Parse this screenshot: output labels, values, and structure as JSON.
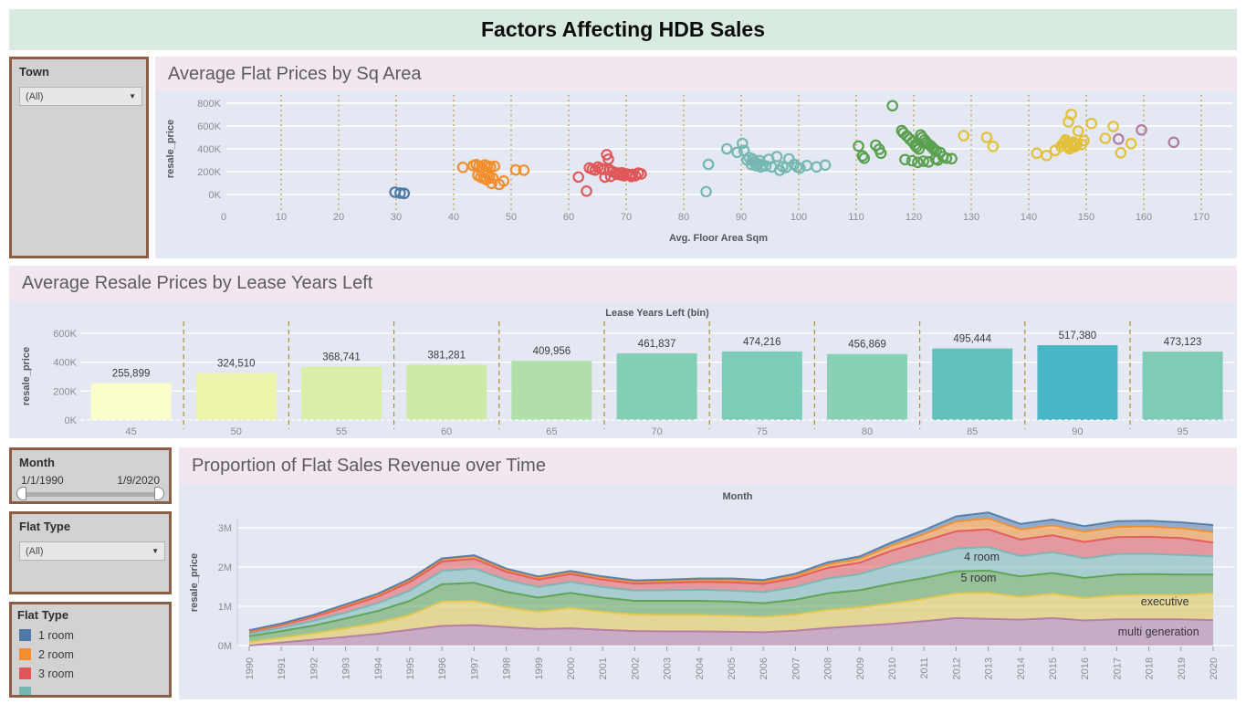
{
  "header": {
    "title": "Factors Affecting HDB Sales"
  },
  "icons": {
    "dropdown_caret": "▼"
  },
  "filters": {
    "town": {
      "label": "Town",
      "value": "(All)"
    },
    "month": {
      "label": "Month",
      "start": "1/1/1990",
      "end": "1/9/2020"
    },
    "flat_type": {
      "label": "Flat Type",
      "value": "(All)"
    }
  },
  "legend": {
    "title": "Flat Type",
    "items": [
      {
        "label": "1 room",
        "color": "#4e79a7"
      },
      {
        "label": "2 room",
        "color": "#f28e2b"
      },
      {
        "label": "3 room",
        "color": "#e15759"
      },
      {
        "label": "",
        "color": "#76b7b2"
      }
    ]
  },
  "colors": {
    "banner_bg": "#d9eae1",
    "strip_bg": "#f2e7f0",
    "plot_bg": "#e4e8f3",
    "filter_border": "#8b5e46",
    "grid_white": "#ffffff"
  },
  "chart_data": [
    {
      "id": "scatter",
      "type": "scatter",
      "title": "Average Flat Prices by Sq Area",
      "xlabel": "Avg. Floor Area Sqm",
      "ylabel": "resale_price",
      "xlim": [
        0,
        175
      ],
      "ylim_k": [
        0,
        800
      ],
      "grid_color": "#b99a2f",
      "x_ticks": [
        0,
        10,
        20,
        30,
        40,
        50,
        60,
        70,
        80,
        90,
        100,
        110,
        120,
        130,
        140,
        150,
        160,
        170
      ],
      "y_ticks": [
        [
          0,
          "0K"
        ],
        [
          200,
          "200K"
        ],
        [
          400,
          "400K"
        ],
        [
          600,
          "600K"
        ],
        [
          800,
          "800K"
        ]
      ],
      "series": [
        {
          "name": "1 room",
          "color": "#4e79a7",
          "points": [
            [
              29.8,
              20
            ],
            [
              30.7,
              13
            ],
            [
              31.4,
              10
            ]
          ]
        },
        {
          "name": "2 room",
          "color": "#f28e2b",
          "points": [
            [
              41.6,
              238
            ],
            [
              43.4,
              252
            ],
            [
              43.9,
              262
            ],
            [
              44.4,
              248
            ],
            [
              44.9,
              238
            ],
            [
              45.4,
              260
            ],
            [
              45.9,
              250
            ],
            [
              46.4,
              242
            ],
            [
              47.1,
              248
            ],
            [
              44.2,
              168
            ],
            [
              44.7,
              152
            ],
            [
              45.2,
              142
            ],
            [
              45.7,
              130
            ],
            [
              46.2,
              152
            ],
            [
              46.8,
              144
            ],
            [
              46.6,
              98
            ],
            [
              47.9,
              88
            ],
            [
              48.7,
              118
            ],
            [
              45.0,
              198
            ],
            [
              46.0,
              186
            ],
            [
              50.8,
              215
            ],
            [
              52.2,
              213
            ]
          ]
        },
        {
          "name": "3 room",
          "color": "#e15759",
          "points": [
            [
              61.7,
              153
            ],
            [
              63.1,
              30
            ],
            [
              63.6,
              233
            ],
            [
              64.1,
              222
            ],
            [
              64.6,
              214
            ],
            [
              65.1,
              241
            ],
            [
              65.6,
              229
            ],
            [
              66.1,
              219
            ],
            [
              66.6,
              349
            ],
            [
              66.9,
              309
            ],
            [
              67.1,
              215
            ],
            [
              67.6,
              201
            ],
            [
              68.1,
              191
            ],
            [
              68.4,
              177
            ],
            [
              68.8,
              187
            ],
            [
              69.1,
              171
            ],
            [
              69.6,
              165
            ],
            [
              70.1,
              179
            ],
            [
              70.6,
              171
            ],
            [
              71.1,
              175
            ],
            [
              71.6,
              165
            ],
            [
              72.1,
              187
            ],
            [
              72.6,
              179
            ],
            [
              66.3,
              153
            ],
            [
              67.3,
              159
            ],
            [
              70.9,
              158
            ],
            [
              69.3,
              190
            ]
          ]
        },
        {
          "name": "4 room",
          "color": "#76b7b2",
          "points": [
            [
              83.9,
              25
            ],
            [
              84.3,
              264
            ],
            [
              87.5,
              400
            ],
            [
              89.3,
              370
            ],
            [
              90.2,
              448
            ],
            [
              90.5,
              386
            ],
            [
              91.0,
              302
            ],
            [
              91.4,
              324
            ],
            [
              91.8,
              262
            ],
            [
              92.2,
              284
            ],
            [
              92.6,
              252
            ],
            [
              93.0,
              270
            ],
            [
              93.4,
              242
            ],
            [
              93.8,
              258
            ],
            [
              94.3,
              250
            ],
            [
              94.8,
              308
            ],
            [
              95.3,
              242
            ],
            [
              96.2,
              332
            ],
            [
              96.7,
              212
            ],
            [
              97.2,
              244
            ],
            [
              97.8,
              238
            ],
            [
              98.3,
              312
            ],
            [
              99.2,
              264
            ],
            [
              99.7,
              242
            ],
            [
              100.2,
              232
            ],
            [
              101.4,
              254
            ],
            [
              103.1,
              242
            ],
            [
              104.6,
              258
            ],
            [
              92.0,
              310
            ],
            [
              93.2,
              296
            ]
          ]
        },
        {
          "name": "5 room",
          "color": "#59a14f",
          "points": [
            [
              110.4,
              424
            ],
            [
              111.1,
              338
            ],
            [
              111.4,
              318
            ],
            [
              113.4,
              432
            ],
            [
              114.0,
              396
            ],
            [
              114.3,
              362
            ],
            [
              116.3,
              778
            ],
            [
              117.9,
              560
            ],
            [
              118.2,
              540
            ],
            [
              118.8,
              512
            ],
            [
              119.3,
              484
            ],
            [
              119.8,
              462
            ],
            [
              120.2,
              434
            ],
            [
              120.5,
              416
            ],
            [
              120.9,
              398
            ],
            [
              121.2,
              522
            ],
            [
              121.5,
              500
            ],
            [
              121.9,
              478
            ],
            [
              122.2,
              458
            ],
            [
              122.5,
              442
            ],
            [
              122.9,
              428
            ],
            [
              123.2,
              412
            ],
            [
              123.5,
              396
            ],
            [
              123.9,
              382
            ],
            [
              124.2,
              302
            ],
            [
              121.7,
              292
            ],
            [
              120.7,
              282
            ],
            [
              122.6,
              286
            ],
            [
              123.8,
              312
            ],
            [
              125.1,
              332
            ],
            [
              125.7,
              318
            ],
            [
              119.7,
              296
            ],
            [
              126.6,
              314
            ],
            [
              118.5,
              306
            ],
            [
              124.6,
              368
            ]
          ]
        },
        {
          "name": "executive",
          "color": "#e3c03a",
          "points": [
            [
              128.7,
              515
            ],
            [
              132.7,
              500
            ],
            [
              133.8,
              422
            ],
            [
              141.4,
              362
            ],
            [
              143.1,
              342
            ],
            [
              144.6,
              386
            ],
            [
              145.6,
              422
            ],
            [
              146.0,
              446
            ],
            [
              146.3,
              462
            ],
            [
              146.6,
              432
            ],
            [
              146.9,
              416
            ],
            [
              147.1,
              400
            ],
            [
              147.3,
              446
            ],
            [
              147.6,
              430
            ],
            [
              148.0,
              420
            ],
            [
              148.4,
              442
            ],
            [
              147.4,
              702
            ],
            [
              146.9,
              636
            ],
            [
              148.6,
              556
            ],
            [
              150.9,
              622
            ],
            [
              149.6,
              472
            ],
            [
              153.3,
              492
            ],
            [
              154.7,
              596
            ],
            [
              156.0,
              366
            ],
            [
              157.8,
              446
            ],
            [
              147.8,
              458
            ],
            [
              146.4,
              478
            ],
            [
              149.2,
              438
            ]
          ]
        },
        {
          "name": "multi generation",
          "color": "#b07aa1",
          "points": [
            [
              155.6,
              486
            ],
            [
              159.6,
              566
            ],
            [
              165.2,
              458
            ]
          ]
        }
      ]
    },
    {
      "id": "lease_bars",
      "type": "bar",
      "title": "Average Resale Prices by Lease Years Left",
      "axis_header": "Lease Years Left (bin)",
      "ylabel": "resale_price",
      "grid_color": "#ad8d2d",
      "categories": [
        45,
        50,
        55,
        60,
        65,
        70,
        75,
        80,
        85,
        90,
        95
      ],
      "values": [
        255899,
        324510,
        368741,
        381281,
        409956,
        461837,
        474216,
        456869,
        495444,
        517380,
        473123
      ],
      "labels": [
        "255,899",
        "324,510",
        "368,741",
        "381,281",
        "409,956",
        "461,837",
        "474,216",
        "456,869",
        "495,444",
        "517,380",
        "473,123"
      ],
      "bar_colors": [
        "#fbfccb",
        "#ecf5ab",
        "#d9efa8",
        "#cdeba7",
        "#b0dfaa",
        "#84cfb5",
        "#7cccb8",
        "#89d0b2",
        "#61c2bd",
        "#47b7c5",
        "#7ecbb6"
      ],
      "y_ticks": [
        [
          0,
          "0K"
        ],
        [
          200000,
          "200K"
        ],
        [
          400000,
          "400K"
        ],
        [
          600000,
          "600K"
        ]
      ],
      "ylim": [
        0,
        600000
      ]
    },
    {
      "id": "revenue_area",
      "type": "area",
      "title": "Proportion of Flat Sales Revenue over Time",
      "axis_header": "Month",
      "ylabel": "resale_price",
      "x": [
        1990,
        1991,
        1992,
        1993,
        1994,
        1995,
        1996,
        1997,
        1998,
        1999,
        2000,
        2001,
        2002,
        2003,
        2004,
        2005,
        2006,
        2007,
        2008,
        2009,
        2010,
        2011,
        2012,
        2013,
        2014,
        2015,
        2016,
        2017,
        2018,
        2019,
        2020
      ],
      "y_ticks": [
        [
          0,
          "0M"
        ],
        [
          1,
          "1M"
        ],
        [
          2,
          "2M"
        ],
        [
          3,
          "3M"
        ]
      ],
      "ylim_m": [
        0,
        3.6
      ],
      "series_bottom_to_top": [
        {
          "name": "multi generation",
          "color": "#b07aa1",
          "values": [
            0.0,
            0.08,
            0.15,
            0.22,
            0.3,
            0.4,
            0.5,
            0.52,
            0.47,
            0.42,
            0.44,
            0.4,
            0.37,
            0.36,
            0.36,
            0.35,
            0.34,
            0.38,
            0.45,
            0.5,
            0.55,
            0.62,
            0.7,
            0.68,
            0.66,
            0.7,
            0.64,
            0.67,
            0.67,
            0.67,
            0.65
          ]
        },
        {
          "name": "executive",
          "color": "#e3c64a",
          "values": [
            0.09,
            0.12,
            0.16,
            0.22,
            0.28,
            0.38,
            0.62,
            0.62,
            0.5,
            0.44,
            0.52,
            0.46,
            0.42,
            0.42,
            0.42,
            0.41,
            0.39,
            0.41,
            0.46,
            0.47,
            0.53,
            0.57,
            0.63,
            0.66,
            0.58,
            0.62,
            0.57,
            0.61,
            0.62,
            0.62,
            0.68
          ]
        },
        {
          "name": "5 room",
          "color": "#59a14f",
          "values": [
            0.15,
            0.17,
            0.2,
            0.25,
            0.3,
            0.36,
            0.44,
            0.46,
            0.4,
            0.36,
            0.38,
            0.36,
            0.35,
            0.36,
            0.36,
            0.36,
            0.35,
            0.38,
            0.42,
            0.44,
            0.5,
            0.53,
            0.56,
            0.57,
            0.52,
            0.53,
            0.51,
            0.53,
            0.53,
            0.52,
            0.48
          ]
        },
        {
          "name": "4 room",
          "color": "#76b7b2",
          "values": [
            0.06,
            0.08,
            0.12,
            0.15,
            0.2,
            0.26,
            0.34,
            0.36,
            0.3,
            0.27,
            0.28,
            0.27,
            0.26,
            0.27,
            0.28,
            0.28,
            0.28,
            0.32,
            0.38,
            0.41,
            0.48,
            0.54,
            0.58,
            0.6,
            0.52,
            0.53,
            0.5,
            0.52,
            0.52,
            0.5,
            0.46
          ]
        },
        {
          "name": "3 room",
          "color": "#e15759",
          "values": [
            0.05,
            0.07,
            0.1,
            0.14,
            0.17,
            0.22,
            0.24,
            0.25,
            0.21,
            0.19,
            0.2,
            0.19,
            0.18,
            0.19,
            0.2,
            0.21,
            0.21,
            0.23,
            0.27,
            0.29,
            0.36,
            0.4,
            0.44,
            0.45,
            0.42,
            0.43,
            0.42,
            0.43,
            0.43,
            0.43,
            0.35
          ]
        },
        {
          "name": "2 room",
          "color": "#f28e2b",
          "values": [
            0.02,
            0.02,
            0.03,
            0.04,
            0.04,
            0.05,
            0.05,
            0.06,
            0.05,
            0.05,
            0.05,
            0.05,
            0.05,
            0.05,
            0.05,
            0.05,
            0.05,
            0.06,
            0.08,
            0.1,
            0.13,
            0.18,
            0.25,
            0.28,
            0.26,
            0.25,
            0.26,
            0.26,
            0.26,
            0.25,
            0.27
          ]
        },
        {
          "name": "1 room",
          "color": "#4e79a7",
          "values": [
            0.02,
            0.02,
            0.02,
            0.03,
            0.03,
            0.03,
            0.03,
            0.03,
            0.03,
            0.03,
            0.03,
            0.03,
            0.03,
            0.03,
            0.04,
            0.05,
            0.05,
            0.05,
            0.06,
            0.06,
            0.08,
            0.1,
            0.13,
            0.15,
            0.14,
            0.15,
            0.14,
            0.15,
            0.15,
            0.15,
            0.18
          ]
        }
      ],
      "annotations": [
        {
          "text": "4 room",
          "year": 2012.8,
          "value": 2.16
        },
        {
          "text": "5 room",
          "year": 2012.7,
          "value": 1.63
        },
        {
          "text": "executive",
          "year": 2018.5,
          "value": 1.02
        },
        {
          "text": "multi generation",
          "year": 2018.3,
          "value": 0.26
        }
      ]
    }
  ]
}
